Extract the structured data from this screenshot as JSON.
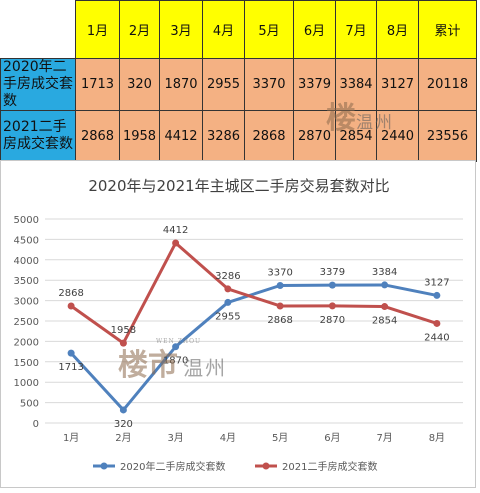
{
  "table": {
    "headers": [
      "1月",
      "2月",
      "3月",
      "4月",
      "5月",
      "6月",
      "7月",
      "8月",
      "累计"
    ],
    "rows": [
      {
        "label": "2020年二手房成交套数",
        "values": [
          "1713",
          "320",
          "1870",
          "2955",
          "3370",
          "3379",
          "3384",
          "3127",
          "20118"
        ]
      },
      {
        "label": "2021二手房成交套数",
        "values": [
          "2868",
          "1958",
          "4412",
          "3286",
          "2868",
          "2870",
          "2854",
          "2440",
          "23556"
        ]
      }
    ]
  },
  "watermark": {
    "logo": "楼市",
    "city": "温州",
    "pinyin": "WEN ZHOU"
  },
  "chart_data": {
    "type": "line",
    "title": "2020年与2021年主城区二手房交易套数对比",
    "categories": [
      "1月",
      "2月",
      "3月",
      "4月",
      "5月",
      "6月",
      "7月",
      "8月"
    ],
    "series": [
      {
        "name": "2020年二手房成交套数",
        "values": [
          1713,
          320,
          1870,
          2955,
          3370,
          3379,
          3384,
          3127
        ],
        "color": "#4f81bd"
      },
      {
        "name": "2021二手房成交套数",
        "values": [
          2868,
          1958,
          4412,
          3286,
          2868,
          2870,
          2854,
          2440
        ],
        "color": "#c0504d"
      }
    ],
    "ylim": [
      0,
      5000
    ],
    "yticks": [
      0,
      500,
      1000,
      1500,
      2000,
      2500,
      3000,
      3500,
      4000,
      4500,
      5000
    ],
    "grid": true,
    "legend": "bottom"
  }
}
